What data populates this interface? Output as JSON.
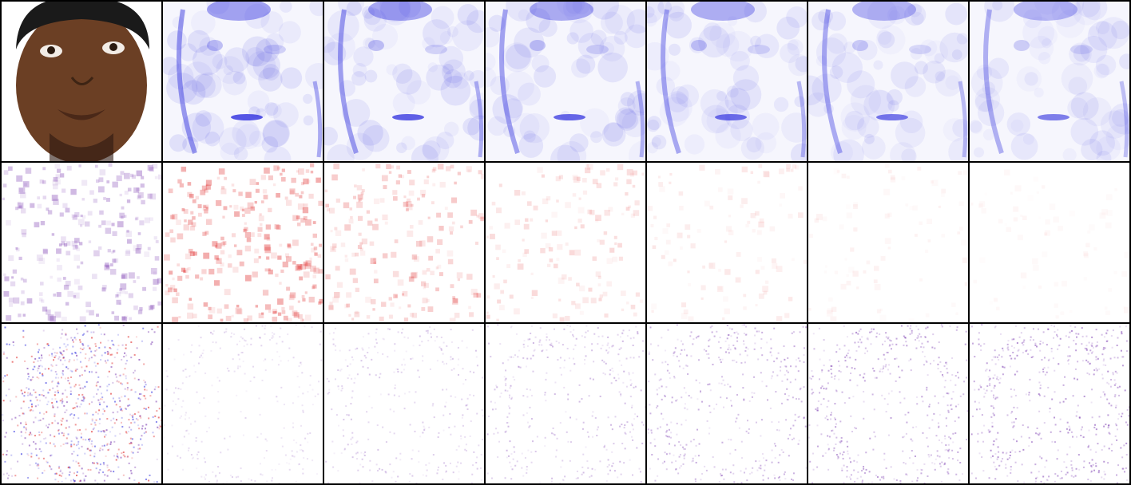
{
  "figure": {
    "rows": 3,
    "cols": 7,
    "panels": [
      {
        "row": 0,
        "col": 0,
        "kind": "photo",
        "subject": "face"
      },
      {
        "row": 0,
        "col": 1,
        "kind": "heatmap",
        "tone": "blue",
        "intensity": 1.0
      },
      {
        "row": 0,
        "col": 2,
        "kind": "heatmap",
        "tone": "blue",
        "intensity": 0.95
      },
      {
        "row": 0,
        "col": 3,
        "kind": "heatmap",
        "tone": "blue",
        "intensity": 0.9
      },
      {
        "row": 0,
        "col": 4,
        "kind": "heatmap",
        "tone": "blue",
        "intensity": 0.85
      },
      {
        "row": 0,
        "col": 5,
        "kind": "heatmap",
        "tone": "blue",
        "intensity": 0.8
      },
      {
        "row": 0,
        "col": 6,
        "kind": "heatmap",
        "tone": "blue",
        "intensity": 0.75
      },
      {
        "row": 1,
        "col": 0,
        "kind": "noise",
        "tone": "purple",
        "intensity": 0.8
      },
      {
        "row": 1,
        "col": 1,
        "kind": "noise",
        "tone": "red",
        "intensity": 0.9
      },
      {
        "row": 1,
        "col": 2,
        "kind": "noise",
        "tone": "red",
        "intensity": 0.6
      },
      {
        "row": 1,
        "col": 3,
        "kind": "noise",
        "tone": "red",
        "intensity": 0.4
      },
      {
        "row": 1,
        "col": 4,
        "kind": "noise",
        "tone": "red",
        "intensity": 0.25
      },
      {
        "row": 1,
        "col": 5,
        "kind": "noise",
        "tone": "red",
        "intensity": 0.15
      },
      {
        "row": 1,
        "col": 6,
        "kind": "noise",
        "tone": "red",
        "intensity": 0.1
      },
      {
        "row": 2,
        "col": 0,
        "kind": "attribution",
        "tone": "mixed",
        "intensity": 1.0
      },
      {
        "row": 2,
        "col": 1,
        "kind": "attribution",
        "tone": "purple",
        "intensity": 0.35
      },
      {
        "row": 2,
        "col": 2,
        "kind": "attribution",
        "tone": "purple",
        "intensity": 0.45
      },
      {
        "row": 2,
        "col": 3,
        "kind": "attribution",
        "tone": "purple",
        "intensity": 0.55
      },
      {
        "row": 2,
        "col": 4,
        "kind": "attribution",
        "tone": "purple",
        "intensity": 0.65
      },
      {
        "row": 2,
        "col": 5,
        "kind": "attribution",
        "tone": "purple",
        "intensity": 0.75
      },
      {
        "row": 2,
        "col": 6,
        "kind": "attribution",
        "tone": "purple",
        "intensity": 0.85
      }
    ]
  },
  "colors": {
    "blue": "#3a3ae0",
    "red": "#e03030",
    "purple": "#7a3ab0",
    "skin": "#6b3f24",
    "cap": "#1a1a1a"
  }
}
